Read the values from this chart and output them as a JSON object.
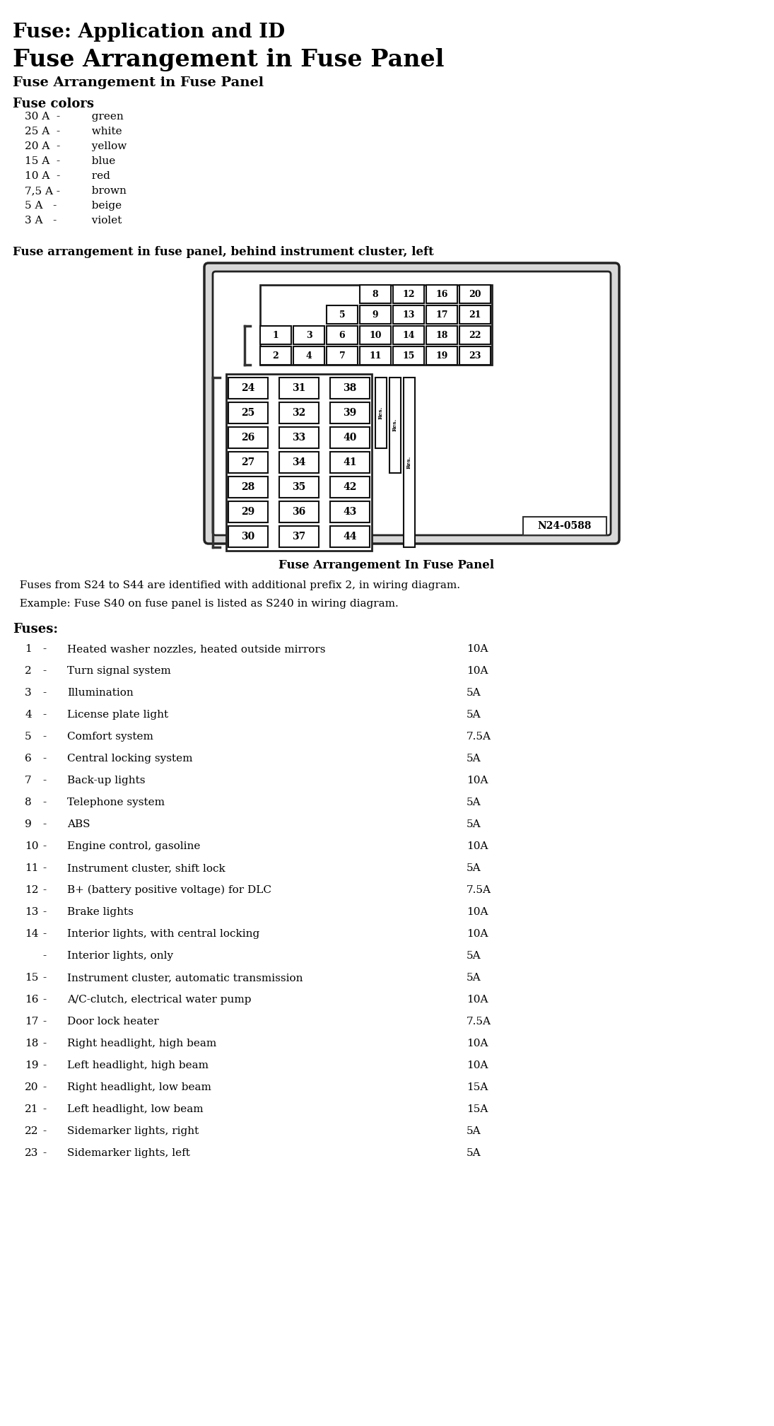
{
  "title1": "Fuse: Application and ID",
  "title2": "Fuse Arrangement in Fuse Panel",
  "title3": "Fuse Arrangement in Fuse Panel",
  "fuse_colors_title": "Fuse colors",
  "fuse_colors": [
    [
      "30 A  -",
      "  green"
    ],
    [
      "25 A  -",
      "  white"
    ],
    [
      "20 A  -",
      "  yellow"
    ],
    [
      "15 A  -",
      "  blue"
    ],
    [
      "10 A  -",
      "  red"
    ],
    [
      "7,5 A -",
      "  brown"
    ],
    [
      "5 A   -",
      "  beige"
    ],
    [
      "3 A   -",
      "  violet"
    ]
  ],
  "diagram_title": "Fuse arrangement in fuse panel, behind instrument cluster, left",
  "diagram_caption": "Fuse Arrangement In Fuse Panel",
  "diagram_note1": "  Fuses from S24 to S44 are identified with additional prefix 2, in wiring diagram.",
  "diagram_note2": "  Example: Fuse S40 on fuse panel is listed as S240 in wiring diagram.",
  "fuses_title": "Fuses:",
  "fuse_list": [
    [
      "1",
      "-",
      "Heated washer nozzles, heated outside mirrors",
      "10A"
    ],
    [
      "2",
      "-",
      "Turn signal system",
      "10A"
    ],
    [
      "3",
      "-",
      "Illumination",
      "5A"
    ],
    [
      "4",
      "-",
      "License plate light",
      "5A"
    ],
    [
      "5",
      "-",
      "Comfort system",
      "7.5A"
    ],
    [
      "6",
      "-",
      "Central locking system",
      "5A"
    ],
    [
      "7",
      "-",
      "Back-up lights",
      "10A"
    ],
    [
      "8",
      "-",
      "Telephone system",
      "5A"
    ],
    [
      "9",
      "-",
      "ABS",
      "5A"
    ],
    [
      "10",
      "-",
      "Engine control, gasoline",
      "10A"
    ],
    [
      "11",
      "-",
      "Instrument cluster, shift lock",
      "5A"
    ],
    [
      "12",
      "-",
      "B+ (battery positive voltage) for DLC",
      "7.5A"
    ],
    [
      "13",
      "-",
      "Brake lights",
      "10A"
    ],
    [
      "14",
      "-",
      "Interior lights, with central locking",
      "10A"
    ],
    [
      "",
      "-",
      "Interior lights, only",
      "5A"
    ],
    [
      "15",
      "-",
      "Instrument cluster, automatic transmission",
      "5A"
    ],
    [
      "16",
      "-",
      "A/C-clutch, electrical water pump",
      "10A"
    ],
    [
      "17",
      "-",
      "Door lock heater",
      "7.5A"
    ],
    [
      "18",
      "-",
      "Right headlight, high beam",
      "10A"
    ],
    [
      "19",
      "-",
      "Left headlight, high beam",
      "10A"
    ],
    [
      "20",
      "-",
      "Right headlight, low beam",
      "15A"
    ],
    [
      "21",
      "-",
      "Left headlight, low beam",
      "15A"
    ],
    [
      "22",
      "-",
      "Sidemarker lights, right",
      "5A"
    ],
    [
      "23",
      "-",
      "Sidemarker lights, left",
      "5A"
    ]
  ],
  "bg_color": "#ffffff",
  "text_color": "#000000"
}
